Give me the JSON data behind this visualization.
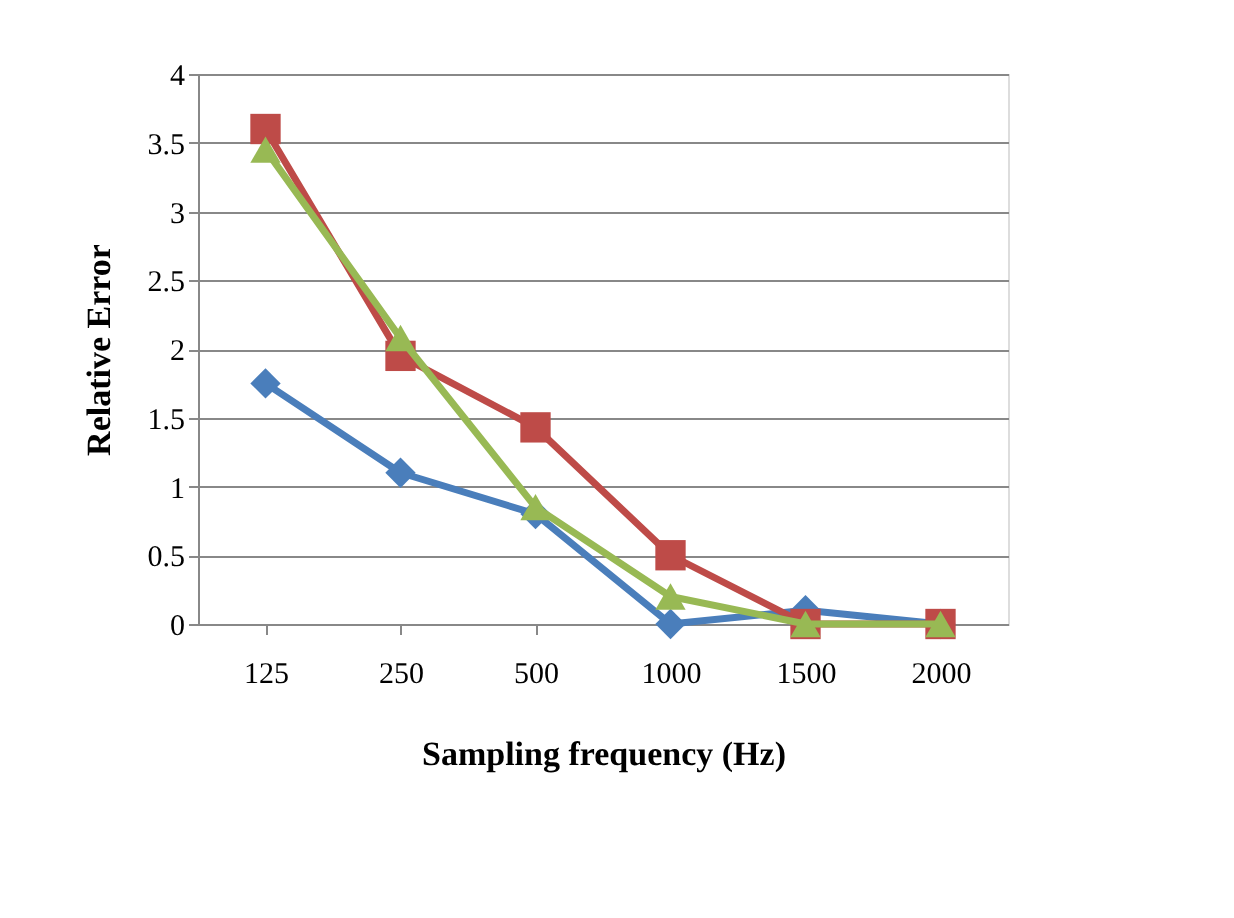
{
  "chart_data": {
    "type": "line",
    "xlabel": "Sampling frequency (Hz)",
    "ylabel": "Relative Error",
    "categories": [
      "125",
      "250",
      "500",
      "1000",
      "1500",
      "2000"
    ],
    "series": [
      {
        "color": "#4a7ebb",
        "marker": "diamond",
        "values": [
          1.75,
          1.1,
          0.8,
          0,
          0.1,
          0
        ]
      },
      {
        "color": "#be4b48",
        "marker": "square",
        "values": [
          3.6,
          1.95,
          1.43,
          0.5,
          0,
          0
        ]
      },
      {
        "color": "#98b954",
        "marker": "triangle",
        "values": [
          3.45,
          2.08,
          0.85,
          0.2,
          0,
          0
        ]
      }
    ],
    "ylim": [
      0,
      4
    ],
    "yticks": [
      0,
      0.5,
      1,
      1.5,
      2,
      2.5,
      3,
      3.5,
      4
    ],
    "grid": "y",
    "line_style": "solid"
  }
}
